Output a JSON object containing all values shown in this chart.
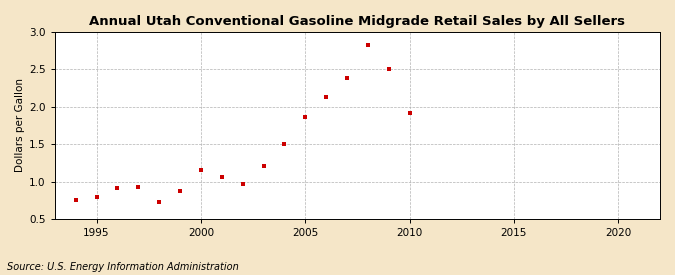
{
  "title": "Annual Utah Conventional Gasoline Midgrade Retail Sales by All Sellers",
  "ylabel": "Dollars per Gallon",
  "source": "Source: U.S. Energy Information Administration",
  "fig_bg_color": "#f5e6c8",
  "plot_bg_color": "#ffffff",
  "marker_color": "#cc0000",
  "grid_color": "#aaaaaa",
  "xlim": [
    1993,
    2022
  ],
  "ylim": [
    0.5,
    3.0
  ],
  "xticks": [
    1995,
    2000,
    2005,
    2010,
    2015,
    2020
  ],
  "yticks": [
    0.5,
    1.0,
    1.5,
    2.0,
    2.5,
    3.0
  ],
  "years": [
    1994,
    1995,
    1996,
    1997,
    1998,
    1999,
    2000,
    2001,
    2002,
    2003,
    2004,
    2005,
    2006,
    2007,
    2008,
    2009,
    2010
  ],
  "values": [
    0.76,
    0.8,
    0.91,
    0.93,
    0.73,
    0.87,
    1.15,
    1.06,
    0.97,
    1.21,
    1.5,
    1.86,
    2.13,
    2.38,
    2.82,
    2.5,
    1.91
  ]
}
